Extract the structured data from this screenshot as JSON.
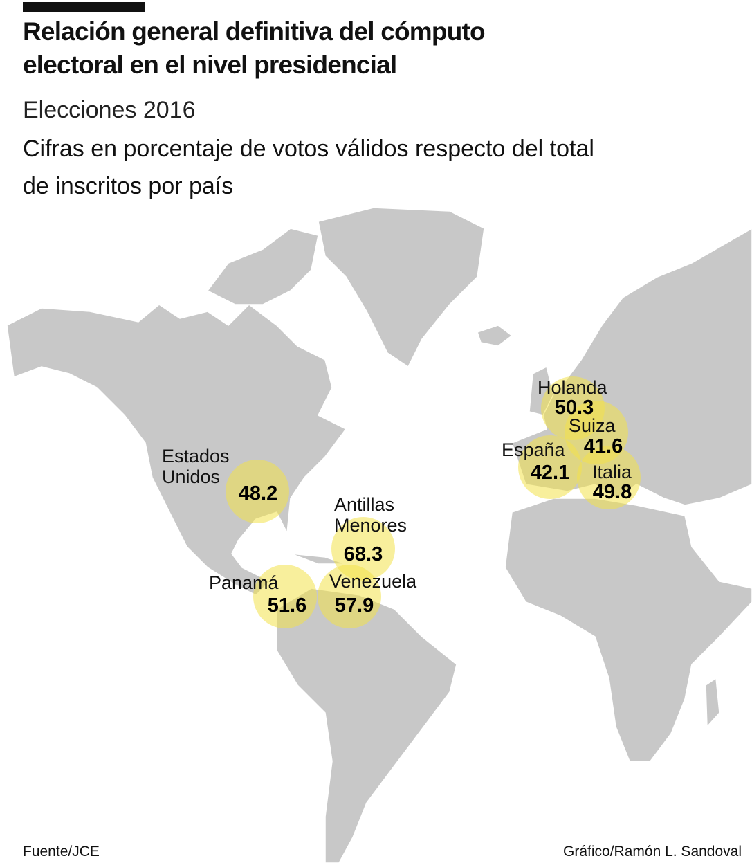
{
  "header": {
    "title": [
      "Relación general definitiva del cómputo",
      "electoral en el nivel presidencial"
    ],
    "subtitle": "Elecciones 2016",
    "description": [
      "Cifras en porcentaje de votos válidos respecto del total",
      "de inscritos por país"
    ]
  },
  "markers": [
    {
      "label": [
        "Estados",
        "Unidos"
      ],
      "value": 48.2
    },
    {
      "label": [
        "Antillas",
        "Menores"
      ],
      "value": 68.3
    },
    {
      "label": [
        "Panamá"
      ],
      "value": 51.6
    },
    {
      "label": [
        "Venezuela"
      ],
      "value": 57.9
    },
    {
      "label": [
        "Holanda"
      ],
      "value": 50.3
    },
    {
      "label": [
        "Suiza"
      ],
      "value": 41.6
    },
    {
      "label": [
        "España"
      ],
      "value": 42.1
    },
    {
      "label": [
        "Italia"
      ],
      "value": 49.8
    }
  ],
  "footer": {
    "source": "Fuente/JCE",
    "credit": "Gráfico/Ramón L. Sandoval"
  }
}
